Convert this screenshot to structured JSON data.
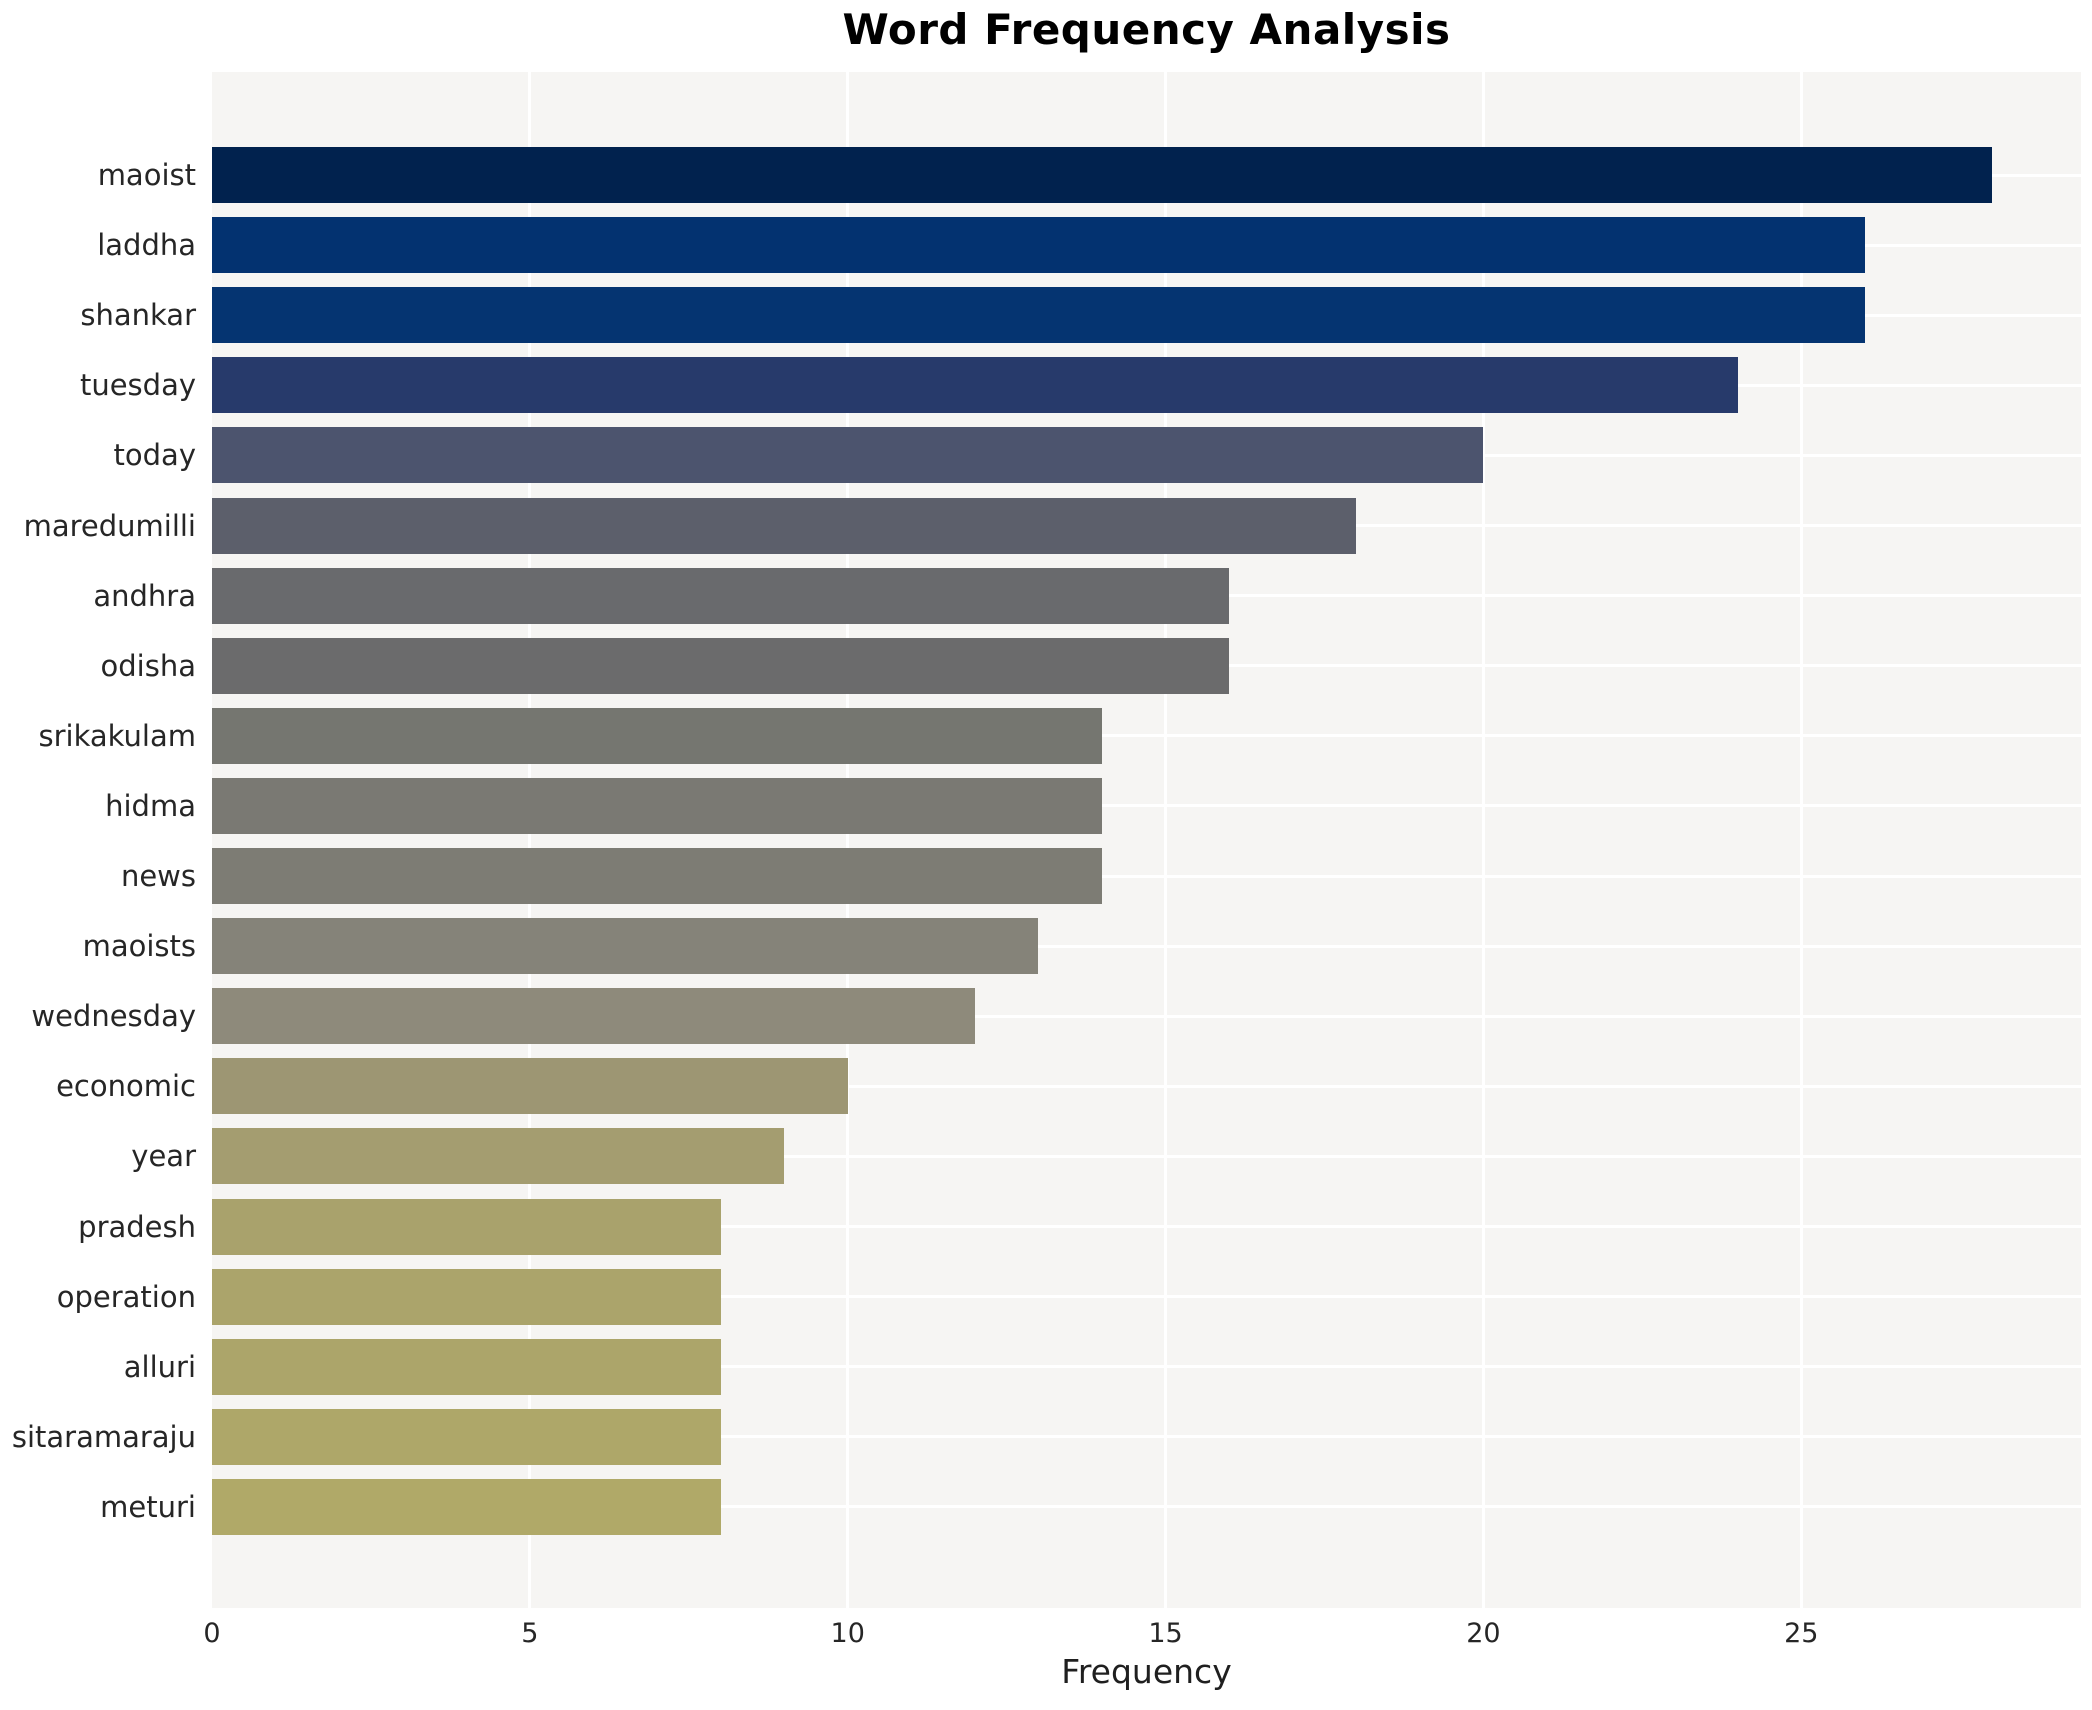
{
  "title": "Word Frequency Analysis",
  "chart_data": {
    "type": "bar",
    "orientation": "horizontal",
    "title": "Word Frequency Analysis",
    "xlabel": "Frequency",
    "ylabel": "",
    "categories": [
      "maoist",
      "laddha",
      "shankar",
      "tuesday",
      "today",
      "maredumilli",
      "andhra",
      "odisha",
      "srikakulam",
      "hidma",
      "news",
      "maoists",
      "wednesday",
      "economic",
      "year",
      "pradesh",
      "operation",
      "alluri",
      "sitaramaraju",
      "meturi"
    ],
    "values": [
      28,
      26,
      26,
      24,
      20,
      18,
      16,
      16,
      14,
      14,
      14,
      13,
      12,
      10,
      9,
      8,
      8,
      8,
      8,
      8
    ],
    "bar_colors": [
      "#01224e",
      "#033270",
      "#053471",
      "#273a6b",
      "#4c546e",
      "#5c5f6b",
      "#696a6d",
      "#6b6b6c",
      "#757670",
      "#7a7973",
      "#7d7c74",
      "#858379",
      "#8e8a7b",
      "#9d9673",
      "#a49d70",
      "#a9a26c",
      "#aba46b",
      "#aca56a",
      "#aea769",
      "#b0a968"
    ],
    "xlim": [
      0,
      29.4
    ],
    "xticks": [
      0,
      5,
      10,
      15,
      20,
      25
    ],
    "grid": true,
    "legend": "none",
    "plot_background": "#f6f5f3",
    "gridline_color": "#ffffff"
  }
}
